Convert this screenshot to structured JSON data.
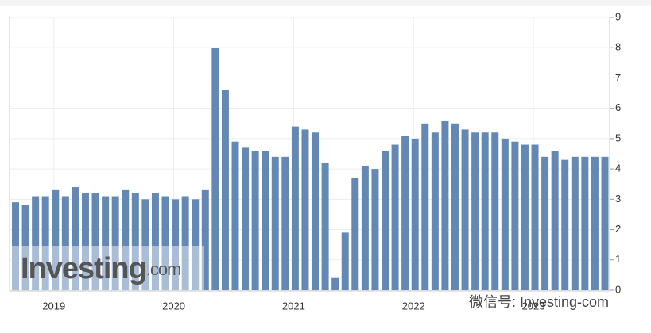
{
  "chart_data": {
    "type": "bar",
    "categories": [
      null,
      null,
      null,
      null,
      "2019",
      null,
      null,
      null,
      null,
      null,
      null,
      null,
      null,
      null,
      null,
      null,
      "2020",
      null,
      null,
      null,
      null,
      null,
      null,
      null,
      null,
      null,
      null,
      null,
      "2021",
      null,
      null,
      null,
      null,
      null,
      null,
      null,
      null,
      null,
      null,
      null,
      "2022",
      null,
      null,
      null,
      null,
      null,
      null,
      null,
      null,
      null,
      null,
      null,
      "2023",
      null,
      null,
      null,
      null,
      null,
      null,
      null
    ],
    "values": [
      2.9,
      2.8,
      3.1,
      3.1,
      3.3,
      3.1,
      3.4,
      3.2,
      3.2,
      3.1,
      3.1,
      3.3,
      3.2,
      3.0,
      3.2,
      3.1,
      3.0,
      3.1,
      3.0,
      3.3,
      8.0,
      6.6,
      4.9,
      4.7,
      4.6,
      4.6,
      4.4,
      4.4,
      5.4,
      5.3,
      5.2,
      4.2,
      0.4,
      1.9,
      3.7,
      4.1,
      4.0,
      4.6,
      4.8,
      5.1,
      5.0,
      5.5,
      5.2,
      5.6,
      5.5,
      5.3,
      5.2,
      5.2,
      5.2,
      5.0,
      4.9,
      4.8,
      4.8,
      4.4,
      4.6,
      4.3,
      4.4,
      4.4,
      4.4,
      4.4
    ],
    "color": "#6488b4",
    "ylim": [
      0,
      9
    ],
    "yticks": [
      0,
      1,
      2,
      3,
      4,
      5,
      6,
      7,
      8,
      9
    ],
    "grid": true,
    "logo": "Investing",
    "logo_suffix": ".com",
    "wechat_watermark": "微信号: Investing-com"
  }
}
